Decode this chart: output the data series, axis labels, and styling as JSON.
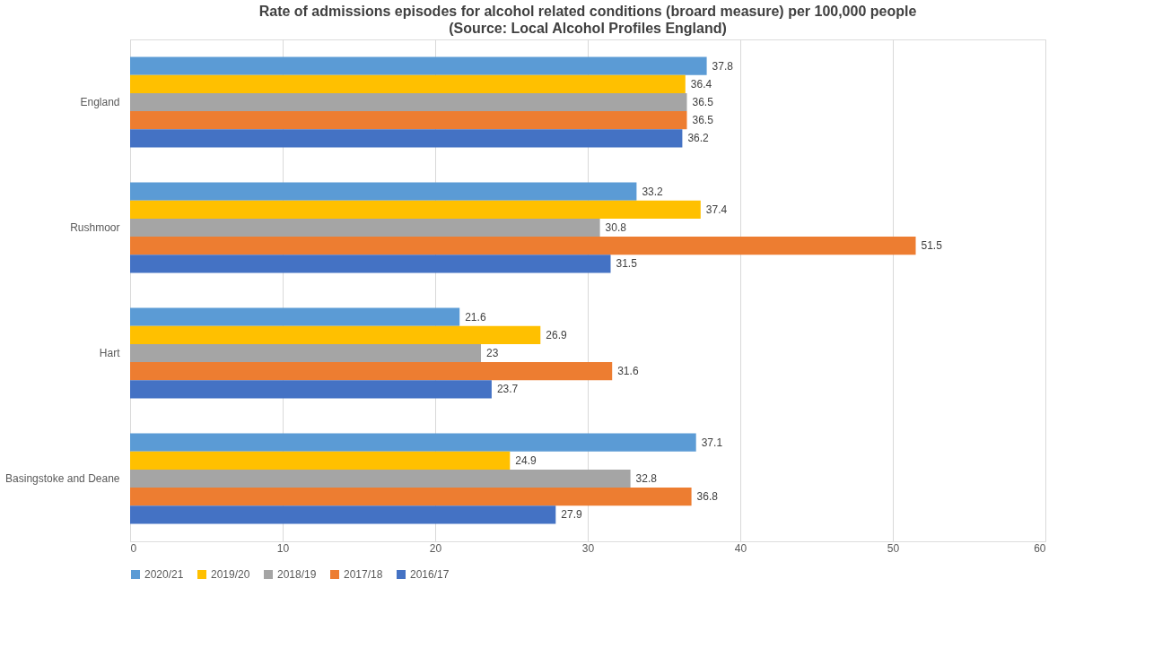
{
  "chart_data": {
    "type": "bar",
    "orientation": "horizontal",
    "title": "Rate of admissions episodes for alcohol related conditions (broard measure) per 100,000 people",
    "subtitle": "(Source: Local Alcohol Profiles England)",
    "categories": [
      "England",
      "Rushmoor",
      "Hart",
      "Basingstoke and Deane"
    ],
    "series": [
      {
        "name": "2020/21",
        "color": "#5b9bd5",
        "values": [
          37.8,
          33.2,
          21.6,
          37.1
        ]
      },
      {
        "name": "2019/20",
        "color": "#ffc000",
        "values": [
          36.4,
          37.4,
          26.9,
          24.9
        ]
      },
      {
        "name": "2018/19",
        "color": "#a5a5a5",
        "values": [
          36.5,
          30.8,
          23,
          32.8
        ]
      },
      {
        "name": "2017/18",
        "color": "#ed7d31",
        "values": [
          36.5,
          51.5,
          31.6,
          36.8
        ]
      },
      {
        "name": "2016/17",
        "color": "#4472c4",
        "values": [
          36.2,
          31.5,
          23.7,
          27.9
        ]
      }
    ],
    "xlim": [
      0,
      60
    ],
    "xticks": [
      0,
      10,
      20,
      30,
      40,
      50,
      60
    ],
    "grid": "x",
    "legend": "bottom",
    "data_labels": true
  }
}
